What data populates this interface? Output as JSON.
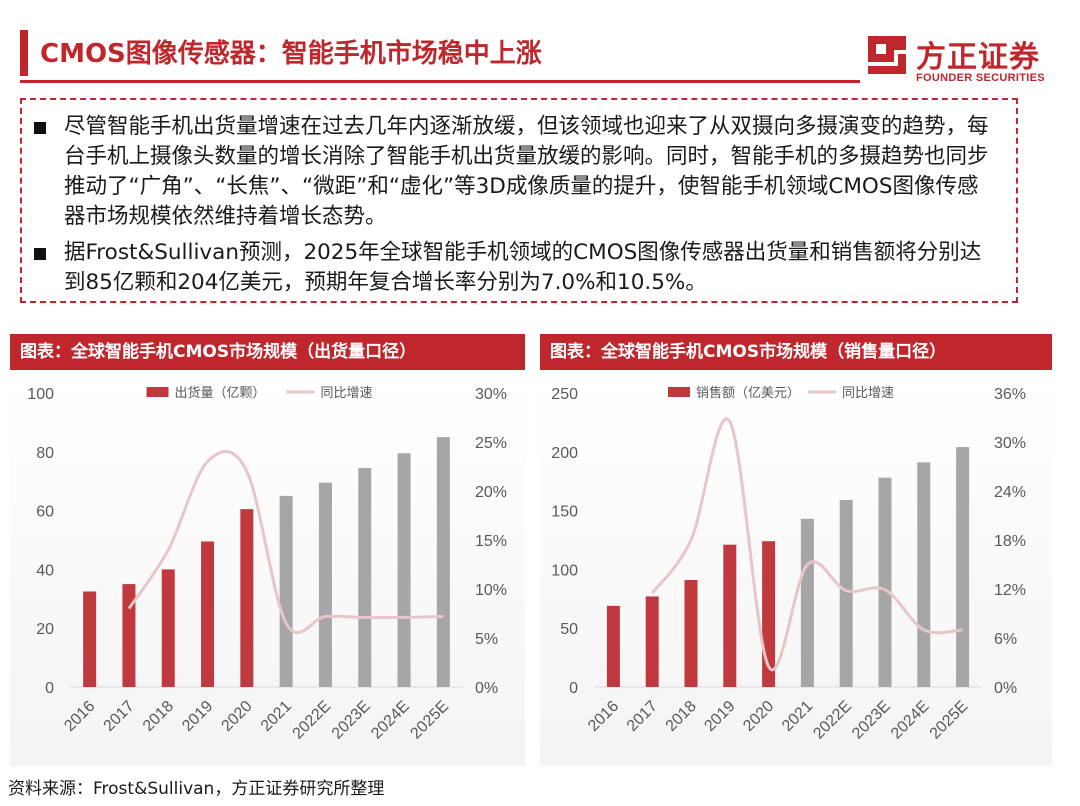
{
  "page": {
    "title": "CMOS图像传感器：智能手机市场稳中上涨",
    "accent_color": "#c0272d"
  },
  "logo": {
    "cn": "方正证券",
    "en": "FOUNDER SECURITIES"
  },
  "bullets": [
    "尽管智能手机出货量增速在过去几年内逐渐放缓，但该领域也迎来了从双摄向多摄演变的趋势，每台手机上摄像头数量的增长消除了智能手机出货量放缓的影响。同时，智能手机的多摄趋势也同步推动了“广角”、“长焦”、“微距”和“虚化”等3D成像质量的提升，使智能手机领域CMOS图像传感器市场规模依然维持着增长态势。",
    "据Frost&Sullivan预测，2025年全球智能手机领域的CMOS图像传感器出货量和销售额将分别达到85亿颗和204亿美元，预期年复合增长率分别为7.0%和10.5%。"
  ],
  "source": "资料来源：Frost&Sullivan，方正证券研究所整理",
  "chart_data": [
    {
      "type": "bar",
      "header": "图表：全球智能手机CMOS市场规模（出货量口径）",
      "categories": [
        "2016",
        "2017",
        "2018",
        "2019",
        "2020",
        "2021",
        "2022E",
        "2023E",
        "2024E",
        "2025E"
      ],
      "bar_series": {
        "name": "出货量（亿颗）",
        "values": [
          32.5,
          35,
          40,
          49.5,
          60.5,
          65,
          69.5,
          74.5,
          79.5,
          85
        ],
        "actual_color": "#c0393f",
        "forecast_color": "#a6a6a6",
        "actual_count": 5
      },
      "line_series": {
        "name": "同比增速",
        "values": [
          null,
          8.0,
          14.0,
          23.0,
          22.0,
          6.5,
          7.2,
          7.1,
          7.1,
          7.2
        ],
        "color": "#e8c5c8"
      },
      "y_left": {
        "min": 0,
        "max": 100,
        "ticks": [
          "0",
          "20",
          "40",
          "60",
          "80",
          "100"
        ]
      },
      "y_right": {
        "min": 0,
        "max": 30,
        "ticks": [
          "0%",
          "5%",
          "10%",
          "15%",
          "20%",
          "25%",
          "30%"
        ]
      },
      "grid": false,
      "legend": "top-center"
    },
    {
      "type": "bar",
      "header": "图表：全球智能手机CMOS市场规模（销售量口径）",
      "categories": [
        "2016",
        "2017",
        "2018",
        "2019",
        "2020",
        "2021",
        "2022E",
        "2023E",
        "2024E",
        "2025E"
      ],
      "bar_series": {
        "name": "销售额（亿美元）",
        "values": [
          69,
          77,
          91,
          121,
          124,
          143,
          159,
          178,
          191,
          204
        ],
        "actual_color": "#c0393f",
        "forecast_color": "#a6a6a6",
        "actual_count": 5
      },
      "line_series": {
        "name": "同比增速",
        "values": [
          null,
          11.5,
          18.0,
          32.5,
          2.5,
          15.0,
          11.8,
          11.9,
          7.0,
          7.0
        ],
        "color": "#e8c5c8"
      },
      "y_left": {
        "min": 0,
        "max": 250,
        "ticks": [
          "0",
          "50",
          "100",
          "150",
          "200",
          "250"
        ]
      },
      "y_right": {
        "min": 0,
        "max": 36,
        "ticks": [
          "0%",
          "6%",
          "12%",
          "18%",
          "24%",
          "30%",
          "36%"
        ]
      },
      "grid": false,
      "legend": "top-center"
    }
  ]
}
